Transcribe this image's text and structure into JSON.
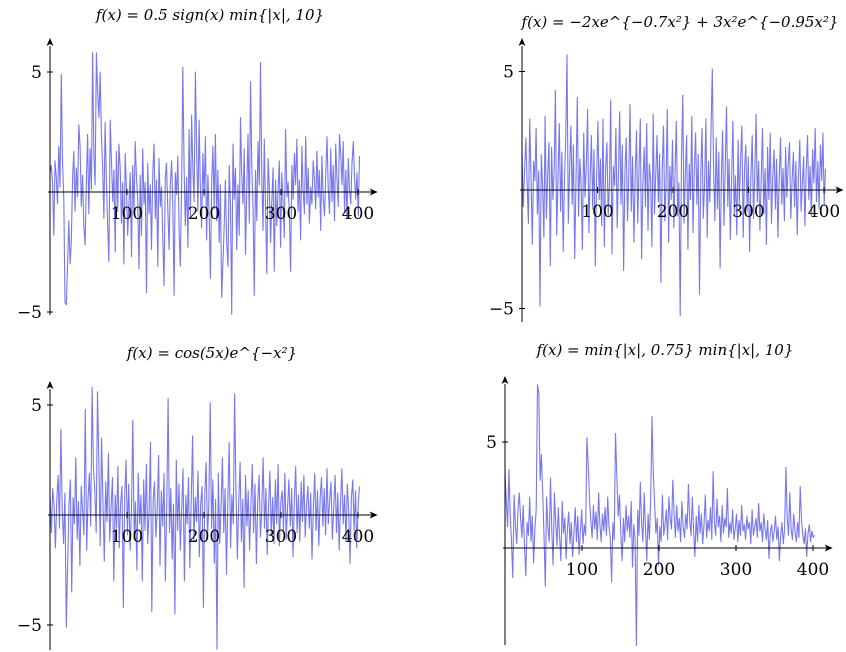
{
  "chart_data": [
    {
      "type": "line",
      "title": "f(x) = 0.5 sign(x) min{|x|, 10}",
      "xlabel": "",
      "ylabel": "",
      "xlim": [
        0,
        410
      ],
      "ylim": [
        -5,
        6
      ],
      "xticks": [
        100,
        200,
        300,
        400
      ],
      "yticks": [
        -5,
        5
      ],
      "color": "#7777ee",
      "series": [
        {
          "values": [
            0.8,
            1.1,
            0.4,
            -1.8,
            1.3,
            0.6,
            -0.5,
            1.9,
            0.2,
            4.9,
            1.3,
            -0.3,
            -4.6,
            -4.7,
            -3.1,
            -1.2,
            -3.0,
            -2.1,
            0.6,
            1.7,
            -0.8,
            1.0,
            -0.2,
            2.8,
            1.9,
            -0.6,
            0.7,
            -1.4,
            -2.2,
            0.3,
            2.4,
            -0.9,
            1.8,
            0.1,
            5.8,
            1.5,
            0.3,
            5.8,
            4.2,
            3.1,
            5.0,
            2.4,
            1.1,
            -1.1,
            2.9,
            0.5,
            -1.3,
            -2.9,
            3.0,
            1.4,
            -0.4,
            0.9,
            -2.5,
            1.7,
            -0.8,
            2.0,
            1.0,
            -1.3,
            0.4,
            -3.0,
            1.6,
            0.2,
            -1.8,
            -0.4,
            0.8,
            -2.7,
            1.1,
            -0.9,
            2.1,
            0.6,
            -0.3,
            -3.2,
            0.7,
            -1.8,
            1.8,
            -0.5,
            0.4,
            -4.2,
            1.2,
            -0.9,
            0.3,
            -2.4,
            0.8,
            2.0,
            -1.1,
            0.5,
            -3.1,
            1.4,
            -0.6,
            0.2,
            -1.9,
            -3.9,
            0.6,
            1.2,
            -0.7,
            -2.4,
            0.3,
            1.3,
            -0.5,
            -4.3,
            0.8,
            -0.1,
            1.5,
            -1.6,
            -3.1,
            0.2,
            5.2,
            1.0,
            -1.4,
            0.6,
            -2.3,
            2.6,
            -1.0,
            3.2,
            0.9,
            -0.4,
            5.0,
            1.8,
            -0.8,
            3.0,
            0.1,
            -1.5,
            1.6,
            -0.2,
            2.3,
            -2.0,
            0.7,
            -1.1,
            -3.6,
            0.4,
            1.9,
            -0.7,
            2.4,
            -1.2,
            0.9,
            -2.1,
            0.3,
            -4.4,
            -3.0,
            -1.4,
            0.5,
            -2.2,
            -3.1,
            1.1,
            -0.6,
            -5.1,
            2.0,
            -0.3,
            1.0,
            -2.4,
            0.3,
            -1.8,
            3.1,
            0.7,
            -0.5,
            1.8,
            -2.6,
            0.2,
            2.4,
            -1.3,
            4.6,
            1.1,
            -0.6,
            -4.3,
            0.9,
            -1.2,
            2.1,
            0.3,
            5.4,
            0.6,
            -1.6,
            2.2,
            -0.8,
            -3.4,
            1.4,
            0.2,
            -2.1,
            -0.4,
            1.0,
            -3.3,
            0.5,
            -1.4,
            0.1,
            1.3,
            -2.3,
            0.8,
            -0.5,
            -1.9,
            2.6,
            -0.2,
            0.4,
            -1.0,
            -3.3,
            1.1,
            -0.3,
            1.6,
            0.3,
            2.2,
            -0.8,
            0.5,
            -2.0,
            1.9,
            0.1,
            -0.9,
            2.3,
            -0.5,
            1.0,
            -1.3,
            0.2,
            -0.5,
            1.3,
            0.6,
            -0.7,
            1.7,
            -0.2,
            0.9,
            -1.6,
            1.5,
            -0.3,
            -1.0,
            0.7,
            2.3,
            0.2,
            -0.9,
            1.8,
            -0.4,
            1.1,
            -1.2,
            2.0,
            0.5,
            -0.6,
            2.4,
            1.6,
            0.3,
            2.1,
            -0.8,
            0.9,
            -1.1,
            1.4,
            0.1,
            -0.5,
            1.2,
            2.1,
            0.6,
            -0.3,
            0.8,
            -1.0,
            1.5
          ]
        }
      ]
    },
    {
      "type": "line",
      "title": "f(x) = −2xe^{−0.7x²} + 3x²e^{−0.95x²}",
      "xlabel": "",
      "ylabel": "",
      "xlim": [
        0,
        410
      ],
      "ylim": [
        -5,
        5.5
      ],
      "xticks": [
        100,
        200,
        300,
        400
      ],
      "yticks": [
        -5,
        5
      ],
      "color": "#7777ee",
      "series": [
        {
          "values": [
            1.6,
            -0.7,
            0.9,
            2.2,
            0.3,
            -1.4,
            3.0,
            0.6,
            -2.3,
            1.2,
            0.4,
            2.6,
            -1.0,
            0.8,
            -4.9,
            1.5,
            0.2,
            -2.0,
            3.1,
            -1.2,
            0.7,
            2.0,
            -3.2,
            1.8,
            -0.4,
            0.8,
            4.2,
            -1.9,
            0.5,
            2.8,
            -0.9,
            1.6,
            -2.6,
            0.3,
            2.1,
            5.7,
            -1.4,
            0.9,
            2.7,
            -0.6,
            1.9,
            -2.9,
            0.4,
            3.9,
            -1.1,
            1.3,
            0.2,
            -2.5,
            2.4,
            -0.3,
            1.0,
            3.4,
            -1.8,
            0.6,
            2.3,
            -0.8,
            1.7,
            -3.2,
            0.5,
            2.9,
            -0.4,
            1.3,
            -1.5,
            3.0,
            -2.4,
            0.9,
            2.0,
            -1.1,
            0.3,
            3.8,
            -2.7,
            1.0,
            0.2,
            2.6,
            -1.6,
            0.8,
            3.3,
            -0.6,
            1.9,
            -3.4,
            0.7,
            2.2,
            -1.3,
            0.4,
            3.6,
            -0.9,
            1.4,
            -2.2,
            0.6,
            2.5,
            -1.4,
            0.9,
            3.0,
            -2.9,
            0.3,
            1.8,
            -0.7,
            2.8,
            -1.7,
            1.1,
            0.4,
            -2.4,
            3.2,
            -1.0,
            0.7,
            2.3,
            -0.5,
            1.5,
            -3.9,
            0.8,
            2.7,
            -1.3,
            0.2,
            3.4,
            -2.2,
            1.0,
            -0.4,
            2.1,
            -1.6,
            0.6,
            2.9,
            -1.1,
            0.3,
            -5.3,
            1.4,
            4.0,
            -1.4,
            0.6,
            2.3,
            -2.5,
            1.1,
            -0.4,
            3.1,
            -1.8,
            0.8,
            2.4,
            -0.6,
            1.5,
            -4.4,
            0.7,
            2.6,
            -1.2,
            0.3,
            3.0,
            -2.0,
            1.2,
            -0.5,
            2.7,
            5.1,
            0.9,
            -1.3,
            2.2,
            -0.8,
            1.6,
            -3.3,
            0.4,
            2.5,
            -1.5,
            0.9,
            3.5,
            -0.7,
            1.3,
            -2.1,
            0.5,
            2.9,
            -1.0,
            0.6,
            -1.9,
            2.1,
            -0.6,
            1.3,
            2.7,
            -2.0,
            0.8,
            1.9,
            -0.9,
            1.4,
            -2.6,
            0.5,
            2.3,
            -1.2,
            0.7,
            3.2,
            -0.5,
            1.2,
            -1.7,
            0.4,
            2.6,
            -1.0,
            0.9,
            -2.3,
            1.8,
            -0.4,
            2.4,
            -1.4,
            0.6,
            1.7,
            -0.8,
            1.3,
            -2.0,
            0.5,
            2.2,
            -0.6,
            0.9,
            -1.3,
            1.8,
            -0.3,
            1.1,
            2.0,
            -1.2,
            0.4,
            1.6,
            -0.7,
            1.2,
            -1.9,
            0.6,
            2.1,
            -0.9,
            0.3,
            1.4,
            -1.5,
            0.8,
            2.3,
            -0.4,
            1.0,
            -1.1,
            1.7,
            0.3,
            2.6,
            -0.5,
            1.2,
            -0.8,
            1.9,
            0.4,
            2.4,
            -0.6,
            0.9
          ]
        }
      ]
    },
    {
      "type": "line",
      "title": "f(x) = cos(5x)e^{−x²}",
      "xlabel": "",
      "ylabel": "",
      "xlim": [
        0,
        410
      ],
      "ylim": [
        -5.5,
        5.5
      ],
      "xticks": [
        100,
        200,
        300,
        400
      ],
      "yticks": [
        -5,
        5
      ],
      "color": "#7777ee",
      "series": [
        {
          "values": [
            0.9,
            -0.8,
            1.2,
            0.4,
            -1.5,
            0.7,
            1.8,
            -0.6,
            3.9,
            0.3,
            -1.3,
            1.0,
            -5.1,
            -2.4,
            0.5,
            1.6,
            -3.5,
            0.8,
            -0.4,
            2.6,
            -1.1,
            0.6,
            -2.3,
            1.3,
            0.2,
            -0.9,
            4.8,
            -1.6,
            0.7,
            1.9,
            -0.5,
            5.8,
            2.2,
            1.1,
            -0.8,
            5.6,
            2.4,
            -1.4,
            3.5,
            0.6,
            -2.1,
            1.5,
            -0.3,
            2.8,
            -1.2,
            0.4,
            1.7,
            -3.0,
            0.9,
            -0.6,
            2.2,
            -1.5,
            0.5,
            1.3,
            -4.2,
            0.8,
            2.5,
            -0.9,
            1.4,
            -1.6,
            0.3,
            4.3,
            -1.1,
            0.6,
            -2.5,
            1.9,
            -0.4,
            0.9,
            -3.0,
            1.6,
            -0.7,
            2.3,
            -1.3,
            0.2,
            3.3,
            -4.4,
            0.7,
            1.5,
            -1.0,
            0.4,
            2.7,
            -2.3,
            1.1,
            -0.5,
            1.9,
            -3.0,
            0.6,
            5.3,
            -0.8,
            1.2,
            -2.0,
            0.5,
            -4.5,
            2.5,
            -0.7,
            1.4,
            -1.6,
            0.3,
            2.1,
            -3.0,
            0.9,
            -0.4,
            1.7,
            -2.4,
            0.6,
            3.6,
            -1.2,
            0.8,
            -0.3,
            2.0,
            -1.9,
            0.5,
            1.3,
            -4.2,
            0.9,
            2.4,
            -1.0,
            0.4,
            5.1,
            -0.6,
            1.6,
            -2.2,
            0.7,
            -6.1,
            1.9,
            -1.3,
            0.4,
            2.6,
            -0.8,
            1.2,
            -2.7,
            0.6,
            3.3,
            -1.5,
            0.9,
            -0.4,
            5.5,
            1.0,
            -2.0,
            0.5,
            2.4,
            -1.2,
            0.7,
            -3.3,
            1.8,
            -0.5,
            1.1,
            -1.6,
            0.4,
            2.3,
            -0.8,
            1.4,
            -2.2,
            0.6,
            1.8,
            -1.0,
            0.3,
            2.6,
            -0.6,
            1.2,
            -1.8,
            0.5,
            2.0,
            -0.9,
            0.8,
            -1.3,
            1.6,
            -0.4,
            2.3,
            -1.4,
            0.6,
            1.1,
            -0.7,
            1.9,
            -1.1,
            0.4,
            1.6,
            -0.5,
            1.2,
            -1.9,
            0.7,
            2.2,
            -0.8,
            0.9,
            -1.2,
            1.5,
            -0.3,
            1.8,
            -1.0,
            0.5,
            1.3,
            -0.6,
            1.0,
            -2.0,
            0.4,
            1.9,
            -0.7,
            1.1,
            -1.4,
            0.8,
            1.7,
            -0.5,
            1.2,
            -0.9,
            2.1,
            -0.4,
            0.7,
            1.5,
            -1.1,
            0.3,
            1.8,
            -0.8,
            1.0,
            -1.6,
            0.6,
            2.1,
            -0.4,
            0.9,
            -1.2,
            1.4,
            0.2,
            -2.2,
            0.8,
            1.6,
            -0.7,
            1.1,
            -1.5,
            0.5,
            1.3
          ]
        }
      ]
    },
    {
      "type": "line",
      "title": "f(x) = min{|x|, 0.75} min{|x|, 10}",
      "xlabel": "",
      "ylabel": "",
      "xlim": [
        0,
        410
      ],
      "ylim": [
        -4.6,
        7.5
      ],
      "xticks": [
        100,
        200,
        300,
        400
      ],
      "yticks": [
        5
      ],
      "color": "#7777ee",
      "series": [
        {
          "values": [
            3.6,
            2.2,
            1.0,
            3.7,
            1.6,
            0.3,
            -1.4,
            2.5,
            1.1,
            0.2,
            1.8,
            2.6,
            1.4,
            0.5,
            2.0,
            0.1,
            -1.3,
            1.2,
            0.6,
            2.4,
            0.3,
            1.5,
            -0.7,
            0.9,
            1.8,
            7.7,
            7.3,
            3.2,
            4.4,
            2.6,
            0.6,
            -1.8,
            2.4,
            1.0,
            0.3,
            3.3,
            0.8,
            -0.8,
            2.6,
            1.2,
            0.1,
            1.9,
            0.5,
            -0.6,
            2.2,
            0.7,
            1.4,
            -0.5,
            0.9,
            1.7,
            0.2,
            1.2,
            -0.4,
            0.7,
            1.9,
            0.3,
            1.5,
            -0.3,
            0.8,
            1.8,
            0.2,
            1.1,
            0.6,
            5.2,
            4.0,
            2.3,
            1.3,
            0.5,
            2.0,
            0.9,
            1.7,
            0.4,
            2.6,
            1.1,
            0.3,
            1.6,
            0.8,
            1.9,
            0.6,
            2.4,
            1.0,
            0.5,
            -1.6,
            1.2,
            0.4,
            5.4,
            3.3,
            1.5,
            2.5,
            0.7,
            -0.6,
            1.4,
            0.3,
            2.0,
            0.8,
            1.5,
            0.5,
            2.2,
            -0.9,
            1.1,
            0.4,
            -4.6,
            1.8,
            0.6,
            3.1,
            1.2,
            0.3,
            2.6,
            0.9,
            -0.6,
            1.6,
            0.4,
            2.3,
            6.2,
            3.5,
            2.1,
            0.7,
            1.4,
            -0.8,
            1.0,
            0.3,
            2.5,
            0.6,
            1.1,
            1.8,
            0.4,
            2.4,
            1.4,
            0.9,
            3.2,
            1.6,
            0.5,
            2.0,
            0.8,
            1.4,
            0.3,
            2.2,
            1.0,
            0.5,
            1.6,
            0.9,
            3.0,
            1.3,
            0.6,
            2.4,
            0.8,
            -0.4,
            1.5,
            0.3,
            2.0,
            0.7,
            1.6,
            0.2,
            1.1,
            2.5,
            0.5,
            1.3,
            0.8,
            1.9,
            0.4,
            3.6,
            1.2,
            0.6,
            2.3,
            1.0,
            1.5,
            0.3,
            2.0,
            0.7,
            1.4,
            1.0,
            2.8,
            0.5,
            1.2,
            0.7,
            1.8,
            0.4,
            0.9,
            1.6,
            0.3,
            1.3,
            0.6,
            2.0,
            0.8,
            1.1,
            0.4,
            1.5,
            0.9,
            1.2,
            0.2,
            1.8,
            0.6,
            1.0,
            1.4,
            0.5,
            2.1,
            0.8,
            1.2,
            0.3,
            1.6,
            0.9,
            0.4,
            1.3,
            -0.5,
            0.7,
            1.1,
            0.3,
            0.8,
            1.5,
            0.4,
            1.0,
            -0.6,
            0.6,
            1.2,
            0.2,
            0.9,
            3.8,
            1.4,
            0.6,
            2.6,
            0.9,
            0.4,
            1.6,
            0.8,
            0.3,
            1.2,
            0.5,
            2.9,
            1.3,
            0.6,
            0.2,
            0.9,
            -0.4,
            0.7,
            1.1,
            0.3,
            0.8,
            0.5,
            0.6
          ]
        }
      ]
    }
  ]
}
